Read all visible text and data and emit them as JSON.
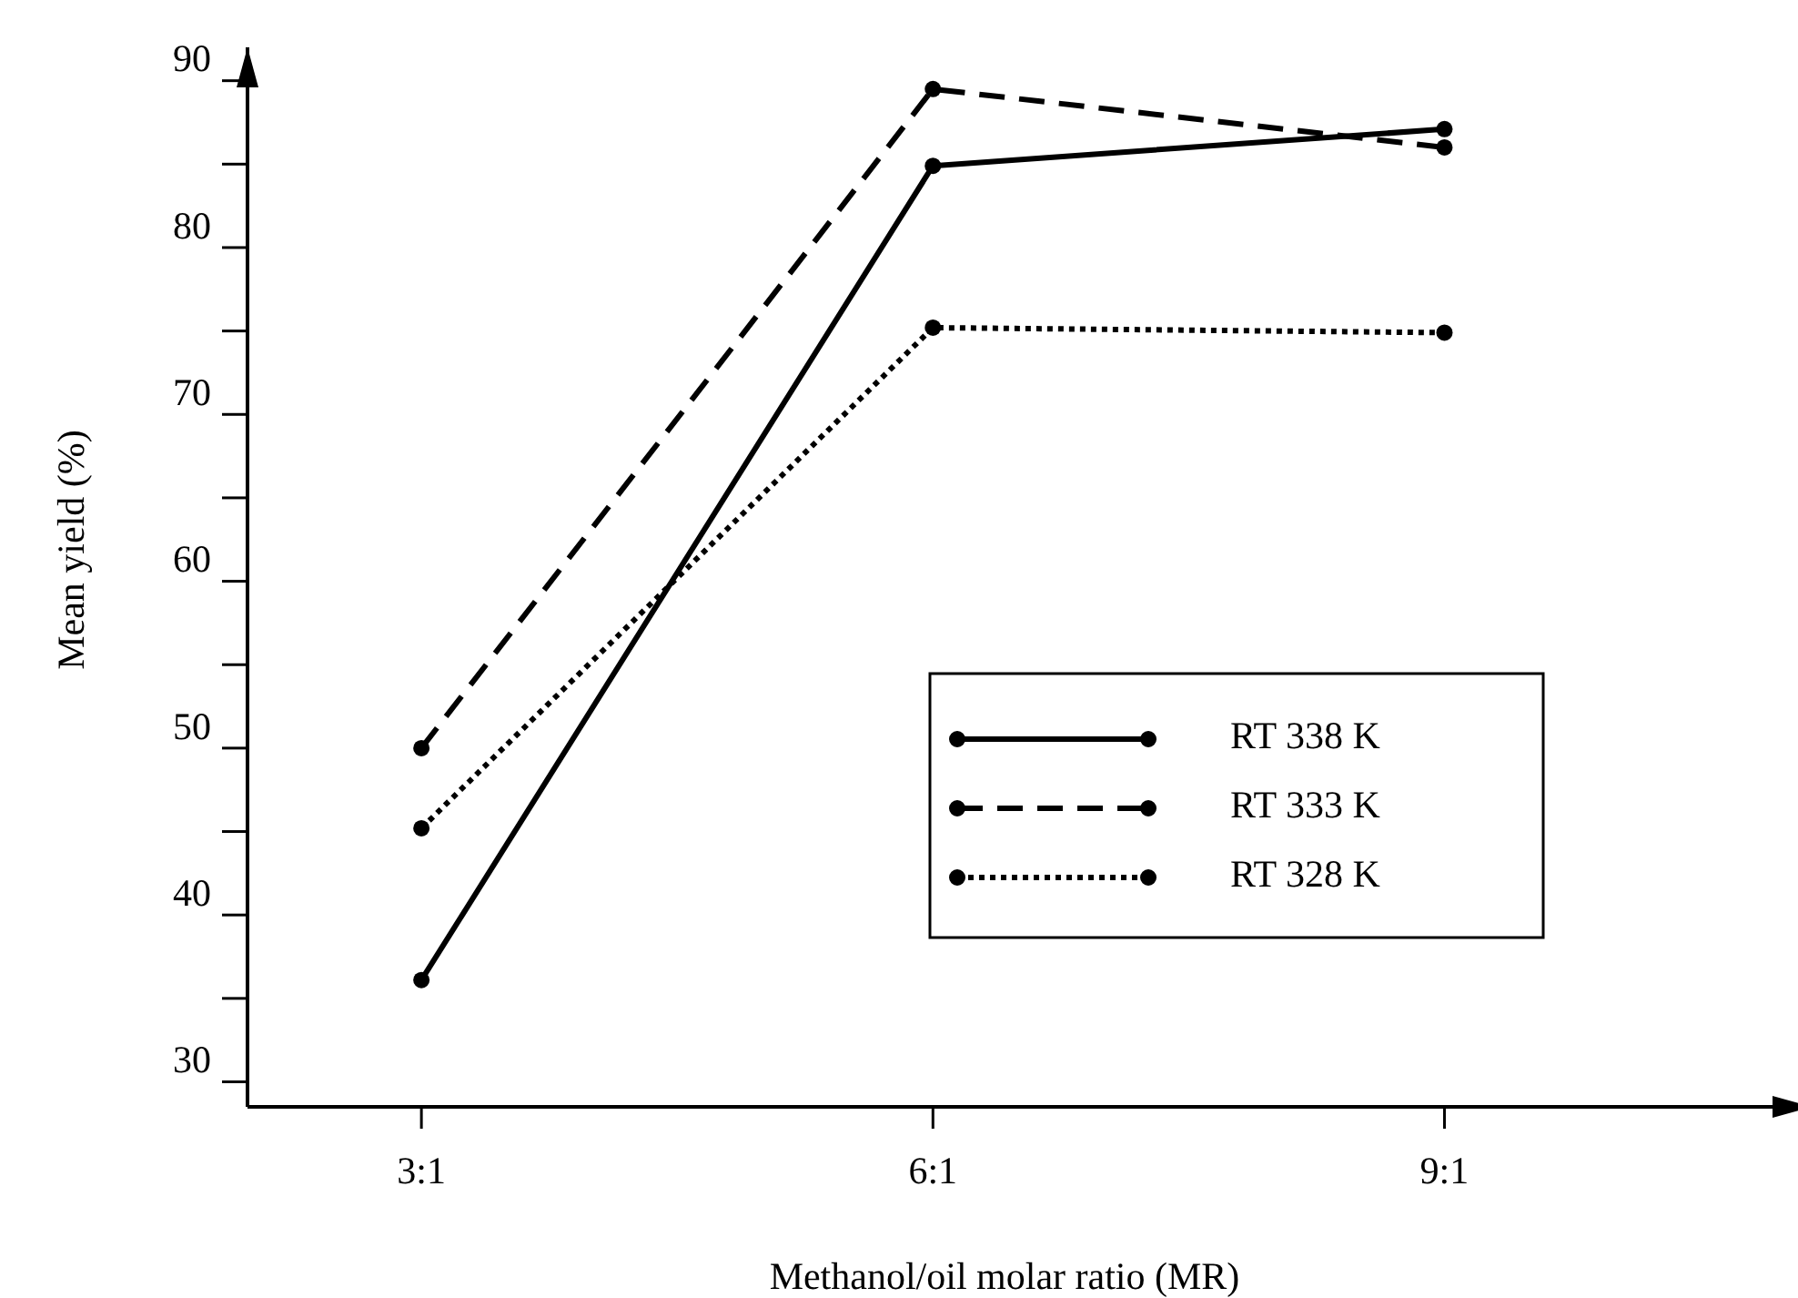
{
  "chart_data": {
    "type": "line",
    "xlabel": "Methanol/oil molar ratio (MR)",
    "ylabel": "Mean yield (%)",
    "categories": [
      "3:1",
      "6:1",
      "9:1"
    ],
    "series": [
      {
        "name": "RT 338 K",
        "color": "#000000",
        "line_style": "solid",
        "values": [
          36.1,
          84.9,
          87.1
        ]
      },
      {
        "name": "RT 333 K",
        "color": "#000000",
        "line_style": "dashed",
        "values": [
          50,
          89.5,
          86
        ]
      },
      {
        "name": "RT 328 K",
        "color": "#000000",
        "line_style": "dotted",
        "values": [
          45.2,
          75.2,
          74.9
        ]
      }
    ],
    "ylim": [
      28.5,
      92
    ],
    "yticks": [
      30,
      {
        "value": 35,
        "label": null
      },
      40,
      {
        "value": 45,
        "label": null
      },
      50,
      {
        "value": 55,
        "label": null
      },
      60,
      {
        "value": 65,
        "label": null
      },
      70,
      {
        "value": 75,
        "label": null
      },
      80,
      {
        "value": 85,
        "label": null
      },
      90
    ],
    "marker": "circle",
    "legend": "bottom right"
  }
}
